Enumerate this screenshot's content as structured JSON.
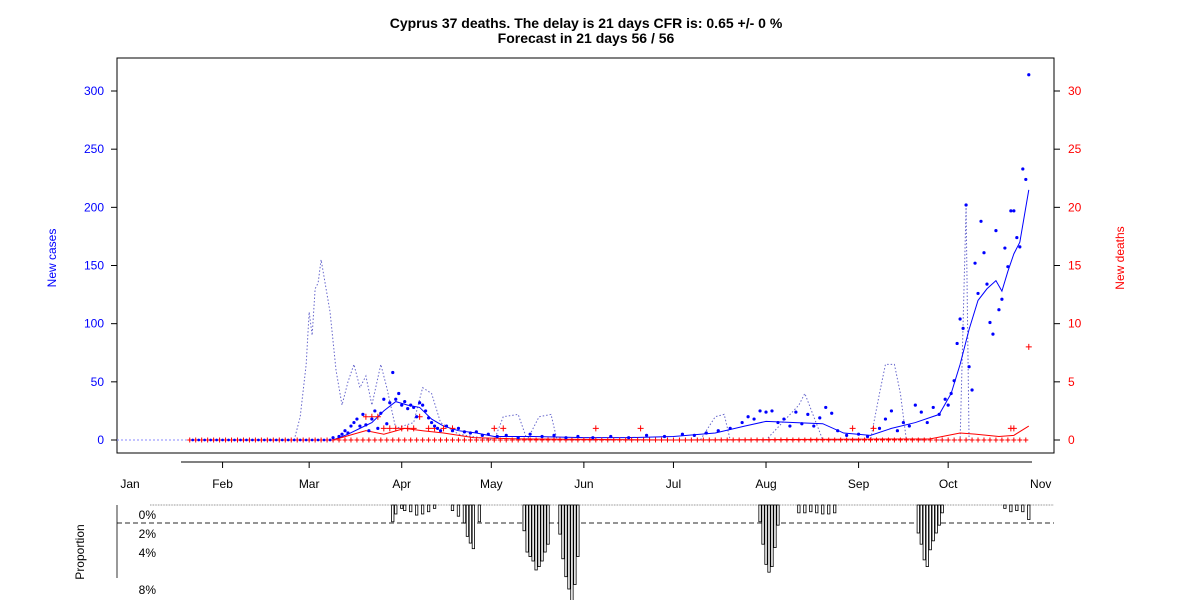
{
  "chart_data": {
    "type": "scatter",
    "title": "Cyprus 37 deaths. The delay is 21 days CFR is: 0.65 +/- 0 %",
    "subtitle": "Forecast in 21 days 56 / 56",
    "xlabel": "",
    "ylabel_left": "New cases",
    "ylabel_right": "New deaths",
    "ylabel_bottom": "Proportion",
    "x_ticks": [
      "Jan",
      "Feb",
      "Mar",
      "Apr",
      "May",
      "Jun",
      "Jul",
      "Aug",
      "Sep",
      "Oct",
      "Nov"
    ],
    "y_left_ticks": [
      "0",
      "50",
      "100",
      "150",
      "200",
      "250",
      "300"
    ],
    "y_right_ticks": [
      "0",
      "5",
      "10",
      "15",
      "20",
      "25",
      "30"
    ],
    "proportion_ticks": [
      "0%",
      "2%",
      "4%",
      "8%"
    ],
    "ylim_left": [
      0,
      320
    ],
    "ylim_right": [
      0,
      32
    ],
    "colors": {
      "cases": "#0000ff",
      "deaths": "#ff0000",
      "axis_left": "#0000ff",
      "axis_right": "#ff0000",
      "bars": "#000000"
    },
    "series": [
      {
        "name": "New cases",
        "points": [
          [
            "Mar 09",
            2
          ],
          [
            "Mar 11",
            3
          ],
          [
            "Mar 12",
            5
          ],
          [
            "Mar 13",
            8
          ],
          [
            "Mar 14",
            6
          ],
          [
            "Mar 15",
            12
          ],
          [
            "Mar 16",
            15
          ],
          [
            "Mar 17",
            18
          ],
          [
            "Mar 18",
            12
          ],
          [
            "Mar 19",
            22
          ],
          [
            "Mar 20",
            13
          ],
          [
            "Mar 21",
            8
          ],
          [
            "Mar 22",
            18
          ],
          [
            "Mar 23",
            25
          ],
          [
            "Mar 24",
            10
          ],
          [
            "Mar 25",
            23
          ],
          [
            "Mar 26",
            35
          ],
          [
            "Mar 27",
            14
          ],
          [
            "Mar 28",
            32
          ],
          [
            "Mar 29",
            58
          ],
          [
            "Mar 30",
            35
          ],
          [
            "Mar 31",
            40
          ],
          [
            "Apr 01",
            30
          ],
          [
            "Apr 02",
            33
          ],
          [
            "Apr 03",
            27
          ],
          [
            "Apr 04",
            30
          ],
          [
            "Apr 05",
            28
          ],
          [
            "Apr 06",
            20
          ],
          [
            "Apr 07",
            32
          ],
          [
            "Apr 08",
            30
          ],
          [
            "Apr 09",
            25
          ],
          [
            "Apr 10",
            19
          ],
          [
            "Apr 11",
            15
          ],
          [
            "Apr 12",
            12
          ],
          [
            "Apr 13",
            10
          ],
          [
            "Apr 14",
            8
          ],
          [
            "Apr 16",
            12
          ],
          [
            "Apr 18",
            8
          ],
          [
            "Apr 20",
            10
          ],
          [
            "Apr 22",
            7
          ],
          [
            "Apr 24",
            6
          ],
          [
            "Apr 26",
            7
          ],
          [
            "Apr 28",
            4
          ],
          [
            "Apr 30",
            5
          ],
          [
            "May 03",
            3
          ],
          [
            "May 06",
            4
          ],
          [
            "May 10",
            2
          ],
          [
            "May 14",
            5
          ],
          [
            "May 18",
            3
          ],
          [
            "May 22",
            4
          ],
          [
            "May 26",
            2
          ],
          [
            "May 30",
            3
          ],
          [
            "Jun 04",
            2
          ],
          [
            "Jun 10",
            3
          ],
          [
            "Jun 16",
            2
          ],
          [
            "Jun 22",
            4
          ],
          [
            "Jun 28",
            3
          ],
          [
            "Jul 04",
            5
          ],
          [
            "Jul 08",
            4
          ],
          [
            "Jul 12",
            6
          ],
          [
            "Jul 16",
            8
          ],
          [
            "Jul 20",
            10
          ],
          [
            "Jul 24",
            15
          ],
          [
            "Jul 26",
            20
          ],
          [
            "Jul 28",
            18
          ],
          [
            "Jul 30",
            25
          ],
          [
            "Aug 01",
            24
          ],
          [
            "Aug 03",
            25
          ],
          [
            "Aug 05",
            15
          ],
          [
            "Aug 07",
            18
          ],
          [
            "Aug 09",
            12
          ],
          [
            "Aug 11",
            24
          ],
          [
            "Aug 13",
            14
          ],
          [
            "Aug 15",
            22
          ],
          [
            "Aug 17",
            12
          ],
          [
            "Aug 19",
            19
          ],
          [
            "Aug 21",
            28
          ],
          [
            "Aug 23",
            23
          ],
          [
            "Aug 25",
            8
          ],
          [
            "Aug 28",
            4
          ],
          [
            "Sep 01",
            5
          ],
          [
            "Sep 04",
            3
          ],
          [
            "Sep 08",
            10
          ],
          [
            "Sep 10",
            18
          ],
          [
            "Sep 12",
            25
          ],
          [
            "Sep 14",
            8
          ],
          [
            "Sep 16",
            15
          ],
          [
            "Sep 18",
            12
          ],
          [
            "Sep 20",
            30
          ],
          [
            "Sep 22",
            24
          ],
          [
            "Sep 24",
            15
          ],
          [
            "Sep 26",
            28
          ],
          [
            "Sep 28",
            22
          ],
          [
            "Sep 30",
            35
          ],
          [
            "Oct 01",
            30
          ],
          [
            "Oct 02",
            40
          ],
          [
            "Oct 03",
            51
          ],
          [
            "Oct 04",
            83
          ],
          [
            "Oct 05",
            104
          ],
          [
            "Oct 06",
            96
          ],
          [
            "Oct 07",
            202
          ],
          [
            "Oct 08",
            63
          ],
          [
            "Oct 09",
            43
          ],
          [
            "Oct 10",
            152
          ],
          [
            "Oct 11",
            126
          ],
          [
            "Oct 12",
            188
          ],
          [
            "Oct 13",
            161
          ],
          [
            "Oct 14",
            134
          ],
          [
            "Oct 15",
            101
          ],
          [
            "Oct 16",
            91
          ],
          [
            "Oct 17",
            180
          ],
          [
            "Oct 18",
            112
          ],
          [
            "Oct 19",
            121
          ],
          [
            "Oct 20",
            165
          ],
          [
            "Oct 21",
            149
          ],
          [
            "Oct 22",
            197
          ],
          [
            "Oct 23",
            197
          ],
          [
            "Oct 24",
            174
          ],
          [
            "Oct 25",
            166
          ],
          [
            "Oct 26",
            233
          ],
          [
            "Oct 27",
            224
          ],
          [
            "Oct 28",
            314
          ]
        ]
      },
      {
        "name": "New deaths",
        "points": [
          [
            "Mar 20",
            2
          ],
          [
            "Mar 22",
            2
          ],
          [
            "Mar 24",
            2
          ],
          [
            "Mar 26",
            1
          ],
          [
            "Mar 28",
            1
          ],
          [
            "Mar 30",
            1
          ],
          [
            "Apr 01",
            1
          ],
          [
            "Apr 03",
            1
          ],
          [
            "Apr 05",
            1
          ],
          [
            "Apr 07",
            2
          ],
          [
            "Apr 10",
            1
          ],
          [
            "Apr 12",
            1
          ],
          [
            "Apr 15",
            1
          ],
          [
            "Apr 18",
            1
          ],
          [
            "May 02",
            1
          ],
          [
            "May 05",
            1
          ],
          [
            "Jun 05",
            1
          ],
          [
            "Jun 20",
            1
          ],
          [
            "Aug 30",
            1
          ],
          [
            "Sep 06",
            1
          ],
          [
            "Oct 22",
            1
          ],
          [
            "Oct 23",
            1
          ],
          [
            "Oct 28",
            8
          ]
        ]
      },
      {
        "name": "Cases smoothed",
        "points": [
          [
            "Mar 09",
            0
          ],
          [
            "Mar 14",
            5
          ],
          [
            "Mar 18",
            10
          ],
          [
            "Mar 22",
            15
          ],
          [
            "Mar 26",
            25
          ],
          [
            "Mar 30",
            33
          ],
          [
            "Apr 03",
            30
          ],
          [
            "Apr 07",
            28
          ],
          [
            "Apr 11",
            18
          ],
          [
            "Apr 15",
            12
          ],
          [
            "Apr 20",
            8
          ],
          [
            "Apr 26",
            6
          ],
          [
            "May 02",
            3
          ],
          [
            "May 15",
            3
          ],
          [
            "Jun 01",
            2
          ],
          [
            "Jun 15",
            2
          ],
          [
            "Jul 01",
            3
          ],
          [
            "Jul 15",
            6
          ],
          [
            "Jul 25",
            12
          ],
          [
            "Aug 01",
            16
          ],
          [
            "Aug 10",
            15
          ],
          [
            "Aug 20",
            14
          ],
          [
            "Aug 27",
            6
          ],
          [
            "Sep 05",
            4
          ],
          [
            "Sep 12",
            10
          ],
          [
            "Sep 20",
            15
          ],
          [
            "Sep 28",
            22
          ],
          [
            "Oct 02",
            40
          ],
          [
            "Oct 05",
            65
          ],
          [
            "Oct 08",
            95
          ],
          [
            "Oct 11",
            120
          ],
          [
            "Oct 14",
            130
          ],
          [
            "Oct 17",
            137
          ],
          [
            "Oct 19",
            128
          ],
          [
            "Oct 21",
            145
          ],
          [
            "Oct 23",
            160
          ],
          [
            "Oct 25",
            170
          ],
          [
            "Oct 28",
            215
          ]
        ]
      },
      {
        "name": "Cases forecast",
        "points": [
          [
            "Feb 25",
            0
          ],
          [
            "Feb 27",
            20
          ],
          [
            "Feb 29",
            65
          ],
          [
            "Mar 01",
            110
          ],
          [
            "Mar 02",
            90
          ],
          [
            "Mar 03",
            130
          ],
          [
            "Mar 04",
            135
          ],
          [
            "Mar 05",
            155
          ],
          [
            "Mar 06",
            140
          ],
          [
            "Mar 08",
            110
          ],
          [
            "Mar 10",
            60
          ],
          [
            "Mar 12",
            30
          ],
          [
            "Mar 14",
            50
          ],
          [
            "Mar 16",
            65
          ],
          [
            "Mar 18",
            45
          ],
          [
            "Mar 20",
            55
          ],
          [
            "Mar 22",
            30
          ],
          [
            "Mar 25",
            65
          ],
          [
            "Mar 27",
            45
          ],
          [
            "Mar 30",
            10
          ],
          [
            "Apr 05",
            15
          ],
          [
            "Apr 08",
            45
          ],
          [
            "Apr 11",
            40
          ],
          [
            "Apr 14",
            15
          ],
          [
            "Apr 20",
            5
          ],
          [
            "May 02",
            0
          ],
          [
            "May 05",
            20
          ],
          [
            "May 10",
            22
          ],
          [
            "May 13",
            0
          ],
          [
            "May 17",
            20
          ],
          [
            "May 21",
            22
          ],
          [
            "May 23",
            0
          ],
          [
            "Jul 10",
            0
          ],
          [
            "Jul 15",
            20
          ],
          [
            "Jul 18",
            22
          ],
          [
            "Jul 20",
            0
          ],
          [
            "Aug 01",
            0
          ],
          [
            "Aug 12",
            30
          ],
          [
            "Aug 14",
            40
          ],
          [
            "Aug 17",
            20
          ],
          [
            "Aug 20",
            0
          ],
          [
            "Sep 05",
            0
          ],
          [
            "Sep 08",
            40
          ],
          [
            "Sep 10",
            65
          ],
          [
            "Sep 13",
            65
          ],
          [
            "Sep 15",
            40
          ],
          [
            "Sep 17",
            0
          ],
          [
            "Oct 05",
            0
          ],
          [
            "Oct 07",
            200
          ],
          [
            "Oct 08",
            0
          ]
        ]
      },
      {
        "name": "Deaths smoothed",
        "points": [
          [
            "Mar 09",
            0
          ],
          [
            "Mar 20",
            0.8
          ],
          [
            "Mar 26",
            0.5
          ],
          [
            "Apr 02",
            1.0
          ],
          [
            "Apr 08",
            0.8
          ],
          [
            "Apr 15",
            0.6
          ],
          [
            "Apr 25",
            0.2
          ],
          [
            "May 10",
            0.1
          ],
          [
            "Jul 01",
            0.0
          ],
          [
            "Sep 25",
            0.1
          ],
          [
            "Oct 05",
            0.6
          ],
          [
            "Oct 10",
            0.5
          ],
          [
            "Oct 18",
            0.3
          ],
          [
            "Oct 23",
            0.4
          ],
          [
            "Oct 28",
            1.2
          ]
        ]
      }
    ],
    "proportion_bars": [
      [
        "Mar 29",
        1.5
      ],
      [
        "Mar 30",
        0.8
      ],
      [
        "Apr 01",
        0.3
      ],
      [
        "Apr 02",
        0.5
      ],
      [
        "Apr 04",
        0.6
      ],
      [
        "Apr 06",
        0.9
      ],
      [
        "Apr 08",
        0.8
      ],
      [
        "Apr 10",
        0.6
      ],
      [
        "Apr 12",
        0.3
      ],
      [
        "Apr 18",
        0.5
      ],
      [
        "Apr 20",
        1.0
      ],
      [
        "Apr 22",
        1.6
      ],
      [
        "Apr 23",
        2.8
      ],
      [
        "Apr 24",
        3.4
      ],
      [
        "Apr 25",
        3.9
      ],
      [
        "Apr 27",
        1.5
      ],
      [
        "May 12",
        2.3
      ],
      [
        "May 13",
        4.2
      ],
      [
        "May 14",
        4.6
      ],
      [
        "May 15",
        5.0
      ],
      [
        "May 16",
        5.8
      ],
      [
        "May 17",
        5.5
      ],
      [
        "May 18",
        5.0
      ],
      [
        "May 19",
        4.2
      ],
      [
        "May 20",
        3.5
      ],
      [
        "May 24",
        2.6
      ],
      [
        "May 25",
        4.8
      ],
      [
        "May 26",
        6.4
      ],
      [
        "May 27",
        7.5
      ],
      [
        "May 28",
        9.0
      ],
      [
        "May 29",
        7.1
      ],
      [
        "May 30",
        4.6
      ],
      [
        "Jul 30",
        1.5
      ],
      [
        "Jul 31",
        3.5
      ],
      [
        "Aug 01",
        5.3
      ],
      [
        "Aug 02",
        6.0
      ],
      [
        "Aug 03",
        5.5
      ],
      [
        "Aug 04",
        3.8
      ],
      [
        "Aug 05",
        1.8
      ],
      [
        "Aug 12",
        0.7
      ],
      [
        "Aug 14",
        0.7
      ],
      [
        "Aug 16",
        0.6
      ],
      [
        "Aug 18",
        0.7
      ],
      [
        "Aug 20",
        0.8
      ],
      [
        "Aug 22",
        0.8
      ],
      [
        "Aug 24",
        0.7
      ],
      [
        "Sep 21",
        2.5
      ],
      [
        "Sep 22",
        3.5
      ],
      [
        "Sep 23",
        4.9
      ],
      [
        "Sep 24",
        5.5
      ],
      [
        "Sep 25",
        4.0
      ],
      [
        "Sep 26",
        3.2
      ],
      [
        "Sep 27",
        2.5
      ],
      [
        "Sep 28",
        1.8
      ],
      [
        "Sep 29",
        0.7
      ],
      [
        "Oct 20",
        0.3
      ],
      [
        "Oct 22",
        0.6
      ],
      [
        "Oct 24",
        0.5
      ],
      [
        "Oct 26",
        0.6
      ],
      [
        "Oct 28",
        1.3
      ]
    ]
  }
}
